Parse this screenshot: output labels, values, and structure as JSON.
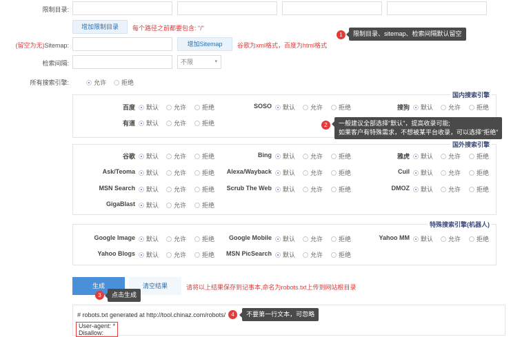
{
  "form": {
    "restrict_label": "限制目录:",
    "add_restrict_button": "增加限制目录",
    "restrict_hint": "每个路径之前都要包含: \"/\"",
    "sitemap_label_prefix": "(留空为无)",
    "sitemap_label": "Sitemap:",
    "add_sitemap_button": "增加Sitemap",
    "sitemap_hint": "谷歌为xml格式，百度为html格式",
    "interval_label": "检索间隔:",
    "interval_select": "不限",
    "all_engines_label": "所有搜索引擎:",
    "all_engines_options": [
      {
        "label": "允许",
        "checked": true
      },
      {
        "label": "拒绝",
        "checked": false
      }
    ]
  },
  "option_labels": [
    "默认",
    "允许",
    "拒绝"
  ],
  "groups": [
    {
      "title": "国内搜索引擎",
      "engines": [
        "百度",
        "SOSO",
        "搜狗",
        "有道"
      ]
    },
    {
      "title": "国外搜索引擎",
      "engines": [
        "谷歌",
        "Bing",
        "雅虎",
        "Ask/Teoma",
        "Alexa/Wayback",
        "Cuil",
        "MSN Search",
        "Scrub The Web",
        "DMOZ",
        "GigaBlast"
      ]
    },
    {
      "title": "特殊搜索引擎(机器人)",
      "engines": [
        "Google Image",
        "Google Mobile",
        "Yahoo MM",
        "Yahoo Blogs",
        "MSN PicSearch"
      ]
    }
  ],
  "actions": {
    "generate": "生成",
    "clear": "清空结果",
    "hint": "请将以上结果保存到记事本,命名为robots.txt上传到网站根目录"
  },
  "result": {
    "lines": [
      "# robots.txt generated at http://tool.chinaz.com/robots/",
      "User-agent: *",
      "Disallow:"
    ]
  },
  "tips": [
    {
      "n": "1",
      "text": "限制目录、sitemap、检索间隔默认留空"
    },
    {
      "n": "2",
      "line1": "一般建议全部选择\"默认\"，提高收录可能;",
      "line2": "如果客户有特殊需求，不想被某平台收录，可以选择\"拒绝\""
    },
    {
      "n": "3",
      "text": "点击生成"
    },
    {
      "n": "4",
      "text": "不要第一行文本，可忽略"
    }
  ],
  "colors": {
    "accent": "#4a90d9",
    "hint_red": "#e23b3b",
    "badge": "#e23b3b",
    "tooltip": "#4a4a4a"
  }
}
